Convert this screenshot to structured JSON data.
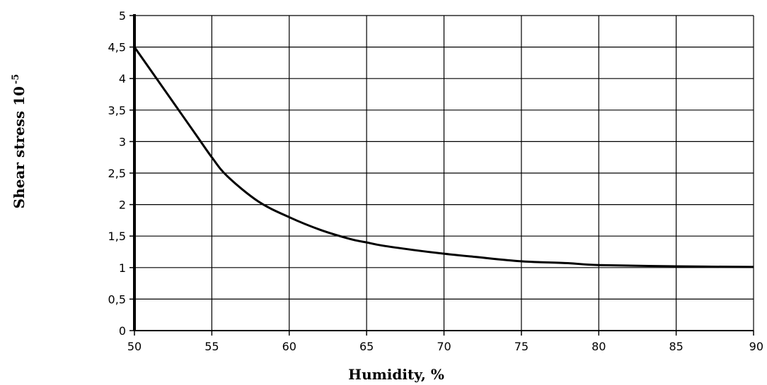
{
  "chart_data": {
    "type": "line",
    "xlabel": "Humidity, %",
    "ylabel": "Shear stress 10",
    "ylabel_exponent": "-5",
    "xlim": [
      50,
      90
    ],
    "ylim": [
      0,
      5
    ],
    "x_ticks": [
      50,
      55,
      60,
      65,
      70,
      75,
      80,
      85,
      90
    ],
    "y_ticks": [
      0,
      0.5,
      1,
      1.5,
      2,
      2.5,
      3,
      3.5,
      4,
      4.5,
      5
    ],
    "x_tick_labels": [
      "50",
      "55",
      "60",
      "65",
      "70",
      "75",
      "80",
      "85",
      "90"
    ],
    "y_tick_labels": [
      "0",
      "0,5",
      "1",
      "1,5",
      "2",
      "2,5",
      "3",
      "3,5",
      "4",
      "4,5",
      "5"
    ],
    "grid": true,
    "legend": "none",
    "line_color": "#000000",
    "series": [
      {
        "x": [
          50,
          52,
          54,
          55,
          56,
          58,
          60,
          62,
          64,
          65,
          66,
          68,
          70,
          72,
          75,
          78,
          80,
          85,
          90
        ],
        "values": [
          4.5,
          3.8,
          3.1,
          2.75,
          2.45,
          2.05,
          1.8,
          1.6,
          1.45,
          1.4,
          1.35,
          1.28,
          1.22,
          1.17,
          1.1,
          1.07,
          1.04,
          1.02,
          1.01
        ]
      }
    ]
  }
}
